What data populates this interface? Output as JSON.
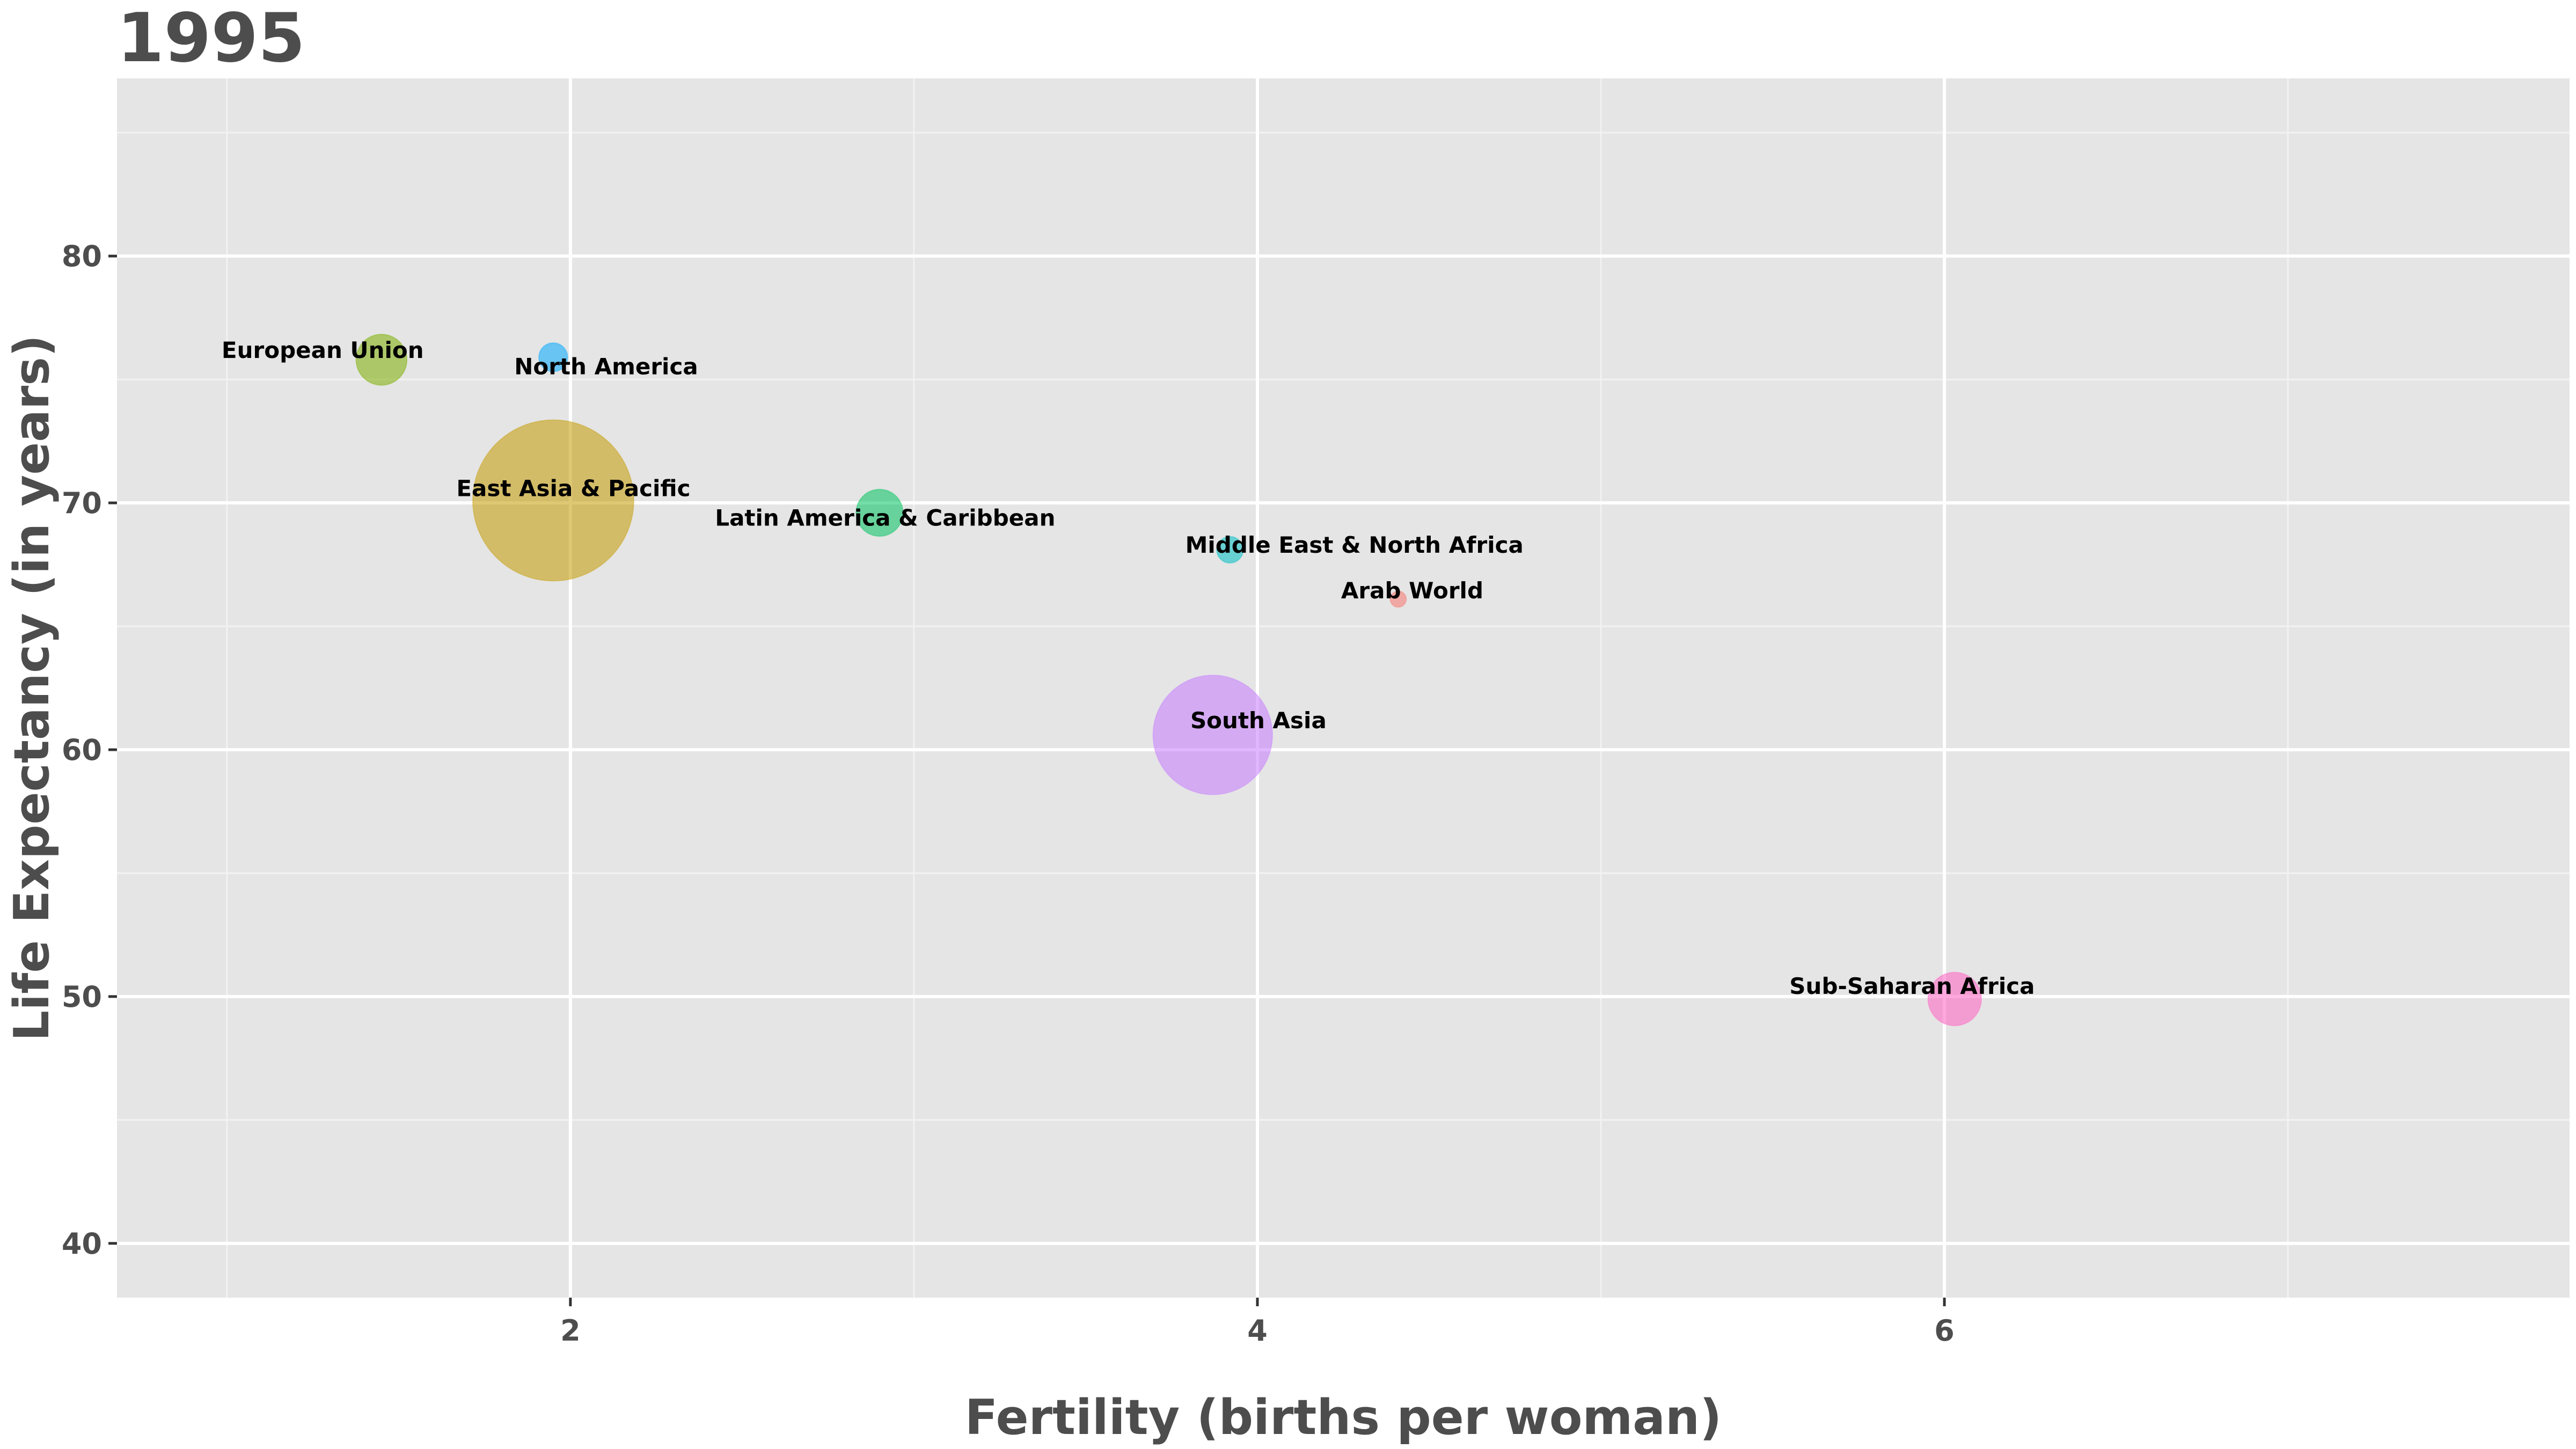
{
  "chart_data": {
    "type": "scatter",
    "title": "1995",
    "xlabel": "Fertility (births per woman)",
    "ylabel": "Life Expectancy (in years)",
    "xlim": [
      0.68,
      7.82
    ],
    "ylim": [
      37.8,
      87.2
    ],
    "x_ticks": [
      2,
      4,
      6
    ],
    "y_ticks": [
      40,
      50,
      60,
      70,
      80
    ],
    "x_tick_labels": [
      "2",
      "4",
      "6"
    ],
    "y_tick_labels": [
      "40",
      "50",
      "60",
      "70",
      "80"
    ],
    "x_minor_ticks": [
      1,
      3,
      5,
      7
    ],
    "y_minor_ticks": [
      45,
      55,
      65,
      75,
      85
    ],
    "grid": true,
    "legend": "none",
    "panel_color": "#e5e5e5",
    "series": [
      {
        "label": "Arab World",
        "x": 4.41,
        "y": 66.1,
        "size": 1,
        "color": "#F8766D"
      },
      {
        "label": "East Asia & Pacific",
        "x": 1.95,
        "y": 70.1,
        "size": 100,
        "color": "#C49A00"
      },
      {
        "label": "European Union",
        "x": 1.45,
        "y": 75.8,
        "size": 10,
        "color": "#7CAE00"
      },
      {
        "label": "Latin America & Caribbean",
        "x": 2.9,
        "y": 69.6,
        "size": 8.5,
        "color": "#00C35F"
      },
      {
        "label": "Middle East & North Africa",
        "x": 3.92,
        "y": 68.1,
        "size": 2.7,
        "color": "#00BFC4"
      },
      {
        "label": "North America",
        "x": 1.95,
        "y": 75.9,
        "size": 3.2,
        "color": "#00A9FF"
      },
      {
        "label": "South Asia",
        "x": 3.87,
        "y": 60.6,
        "size": 55,
        "color": "#C77CFF"
      },
      {
        "label": "Sub-Saharan Africa",
        "x": 6.03,
        "y": 49.9,
        "size": 11,
        "color": "#FF61C3"
      }
    ]
  }
}
